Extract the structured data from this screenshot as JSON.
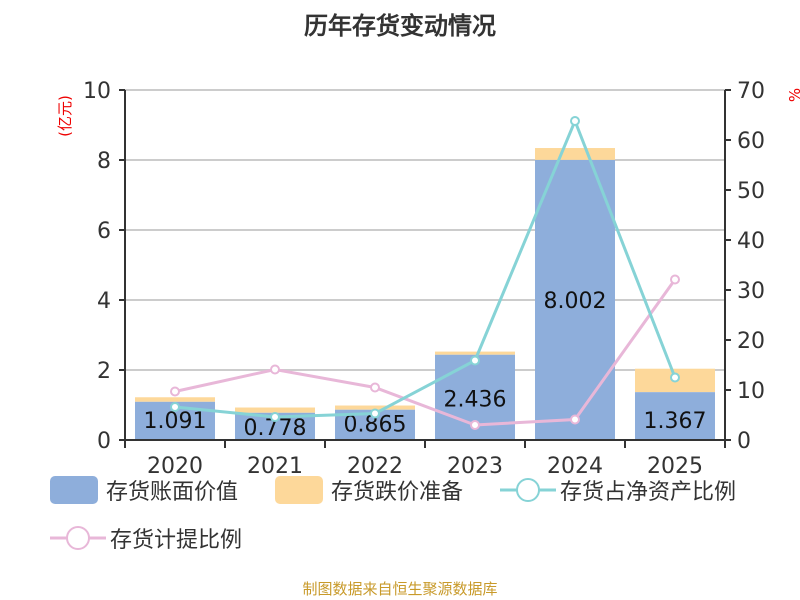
{
  "chart_data": {
    "type": "bar",
    "title": "历年存货变动情况",
    "categories": [
      "2020",
      "2021",
      "2022",
      "2023",
      "2024",
      "2025"
    ],
    "left_axis": {
      "label": "(亿元)",
      "ylim": [
        0,
        10
      ],
      "ticks": [
        "0",
        "2",
        "4",
        "6",
        "8",
        "10"
      ]
    },
    "right_axis": {
      "label": "%",
      "ylim": [
        0,
        70
      ],
      "ticks": [
        "0",
        "10",
        "20",
        "30",
        "40",
        "50",
        "60",
        "70"
      ]
    },
    "series": [
      {
        "name": "存货账面价值",
        "kind": "bar",
        "color": "#8eaedb",
        "values": [
          1.091,
          0.778,
          0.865,
          2.436,
          8.002,
          1.367
        ],
        "labels": [
          "1.091",
          "0.778",
          "0.865",
          "2.436",
          "8.002",
          "1.367"
        ]
      },
      {
        "name": "存货跌价准备",
        "kind": "bar",
        "color": "#fdd89a",
        "values": [
          0.13,
          0.15,
          0.12,
          0.09,
          0.34,
          0.67
        ]
      },
      {
        "name": "存货占净资产比例",
        "kind": "line",
        "axis": "right",
        "color": "#86d3d6",
        "values": [
          6.6,
          4.6,
          5.3,
          15.9,
          63.8,
          12.5
        ]
      },
      {
        "name": "存货计提比例",
        "kind": "line",
        "axis": "right",
        "color": "#e8b7d8",
        "values": [
          9.7,
          14.1,
          10.5,
          3.0,
          4.1,
          32.1
        ]
      }
    ],
    "grid": true,
    "legend_position": "bottom"
  },
  "source": "制图数据来自恒生聚源数据库"
}
